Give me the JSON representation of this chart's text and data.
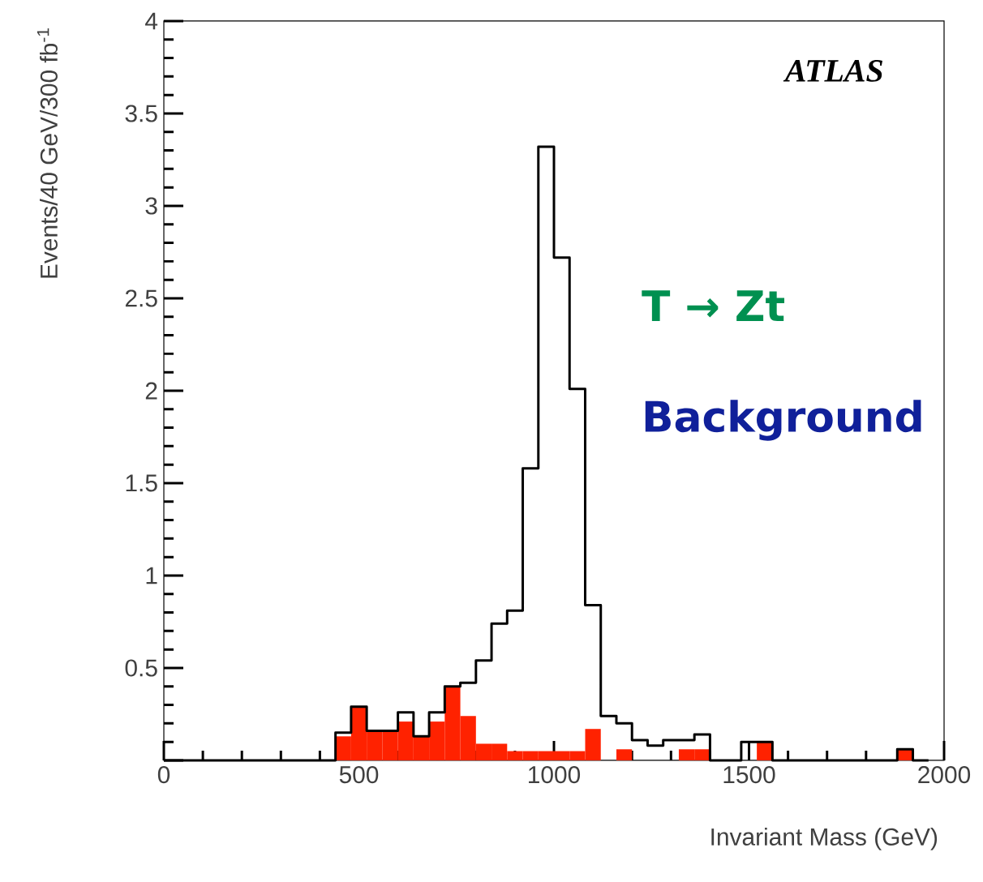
{
  "chart_data": {
    "type": "histogram",
    "xlabel": "Invariant Mass (GeV)",
    "ylabel": "Events/40 GeV/300 fb$^{-1}$",
    "bins": [
      0,
      40,
      80,
      120,
      160,
      200,
      240,
      280,
      320,
      360,
      400,
      440,
      480,
      520,
      560,
      600,
      640,
      680,
      720,
      760,
      800,
      840,
      880,
      920,
      960,
      1000,
      1040,
      1080,
      1120,
      1160,
      1200,
      1240,
      1280,
      1320,
      1360,
      1400,
      1440,
      1480,
      1520,
      1560,
      1600,
      1640,
      1680,
      1720,
      1760,
      1800,
      1840,
      1880,
      1920,
      1960,
      2000
    ],
    "series": [
      {
        "color": "#ff2200",
        "values": [
          0,
          0,
          0,
          0,
          0,
          0,
          0,
          0,
          0,
          0,
          0,
          0.13,
          0.29,
          0.16,
          0.16,
          0.21,
          0.13,
          0.21,
          0.4,
          0.24,
          0.09,
          0.09,
          0.05,
          0.05,
          0.05,
          0.05,
          0.05,
          0.17,
          0,
          0.06,
          0,
          0,
          0,
          0.06,
          0.06,
          0,
          0,
          0,
          0.1,
          0,
          0,
          0,
          0,
          0,
          0,
          0,
          0,
          0.06,
          0,
          0
        ]
      },
      {
        "type": "step",
        "color": "#000000",
        "x": [
          0,
          40,
          80,
          120,
          160,
          200,
          240,
          280,
          320,
          360,
          400,
          440,
          480,
          520,
          560,
          600,
          640,
          680,
          720,
          760,
          800,
          840,
          880,
          920,
          960,
          1000,
          1040,
          1080,
          1120,
          1160,
          1200,
          1240,
          1280,
          1320,
          1360,
          1400,
          1440,
          1480,
          1520,
          1560,
          1600,
          1640,
          1680,
          1720,
          1760,
          1800,
          1840,
          1880,
          1920,
          1960
        ],
        "values": [
          0,
          0,
          0,
          0,
          0,
          0,
          0,
          0,
          0,
          0,
          0,
          0.15,
          0.29,
          0.16,
          0.16,
          0.26,
          0.13,
          0.26,
          0.4,
          0.42,
          0.54,
          0.74,
          0.81,
          1.58,
          3.32,
          2.72,
          2.01,
          0.84,
          0.24,
          0.2,
          0.11,
          0.08,
          0.11,
          0.11,
          0.14,
          0,
          0,
          0.1,
          0.1,
          0,
          0,
          0,
          0,
          0,
          0,
          0,
          0,
          0.06,
          0,
          0
        ]
      }
    ],
    "xlim": [
      0,
      2000
    ],
    "ylim": [
      0,
      4
    ],
    "xticks": [
      0,
      500,
      1000,
      1500,
      2000
    ],
    "yticks": [
      {
        "value": 0,
        "label": null
      },
      0.5,
      1,
      1.5,
      2,
      2.5,
      3,
      3.5,
      4
    ],
    "annotations": [
      "ATLAS",
      "T → Zt",
      "Background"
    ]
  }
}
